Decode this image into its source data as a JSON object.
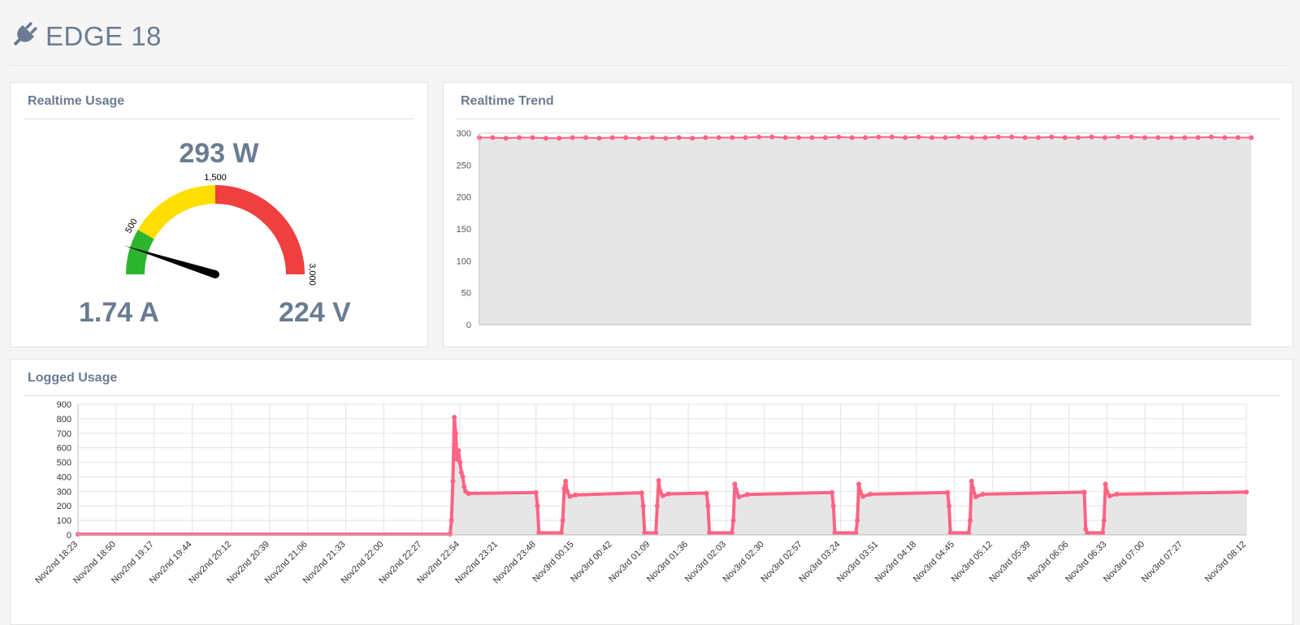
{
  "header": {
    "title": "EDGE 18",
    "icon": "plug-icon"
  },
  "usage": {
    "title": "Realtime Usage",
    "watts": "293 W",
    "amps": "1.74 A",
    "volts": "224 V",
    "gauge": {
      "min": 0,
      "max": 3000,
      "value": 293,
      "bands": [
        {
          "from": 0,
          "to": 500,
          "color": "#2db52d"
        },
        {
          "from": 500,
          "to": 1500,
          "color": "#ffde00"
        },
        {
          "from": 1500,
          "to": 3000,
          "color": "#ef3f3f"
        }
      ],
      "labels": [
        "500",
        "1,500",
        "3,000"
      ]
    }
  },
  "trend": {
    "title": "Realtime Trend"
  },
  "logged": {
    "title": "Logged Usage"
  },
  "colors": {
    "series": "#ff6384",
    "fill": "#e6e6e6",
    "grid": "#dddddd"
  },
  "chart_data": [
    {
      "type": "area",
      "yticks": [
        0,
        50,
        100,
        150,
        200,
        250,
        300
      ],
      "ylim": [
        0,
        300
      ],
      "grid": true,
      "values": [
        293,
        293,
        292,
        293,
        293,
        292,
        292,
        293,
        293,
        292,
        293,
        293,
        292,
        293,
        292,
        293,
        292,
        293,
        293,
        293,
        293,
        294,
        294,
        293,
        293,
        293,
        293,
        294,
        293,
        293,
        294,
        294,
        293,
        294,
        293,
        293,
        294,
        293,
        293,
        294,
        294,
        293,
        293,
        294,
        293,
        293,
        294,
        293,
        294,
        294,
        293,
        293,
        293,
        293,
        293,
        294,
        293,
        293,
        293
      ]
    },
    {
      "type": "area",
      "yticks": [
        0,
        100,
        200,
        300,
        400,
        500,
        600,
        700,
        800,
        900
      ],
      "ylim": [
        0,
        900
      ],
      "grid": true,
      "xticks": [
        "Nov2nd 18:23",
        "Nov2nd 18:50",
        "Nov2nd 19:17",
        "Nov2nd 19:44",
        "Nov2nd 20:12",
        "Nov2nd 20:39",
        "Nov2nd 21:06",
        "Nov2nd 21:33",
        "Nov2nd 22:00",
        "Nov2nd 22:27",
        "Nov2nd 22:54",
        "Nov2nd 23:21",
        "Nov2nd 23:48",
        "Nov3rd 00:15",
        "Nov3rd 00:42",
        "Nov3rd 01:09",
        "Nov3rd 01:36",
        "Nov3rd 02:03",
        "Nov3rd 02:30",
        "Nov3rd 02:57",
        "Nov3rd 03:24",
        "Nov3rd 03:51",
        "Nov3rd 04:18",
        "Nov3rd 04:45",
        "Nov3rd 05:12",
        "Nov3rd 05:39",
        "Nov3rd 06:06",
        "Nov3rd 06:33",
        "Nov3rd 07:00",
        "Nov3rd 07:27",
        "Nov3rd 08:12"
      ],
      "points": [
        [
          "Nov2nd 18:23",
          5
        ],
        [
          "Nov2nd 22:47",
          5
        ],
        [
          "Nov2nd 22:48",
          100
        ],
        [
          "Nov2nd 22:49",
          370
        ],
        [
          "Nov2nd 22:50",
          810
        ],
        [
          "Nov2nd 22:51",
          700
        ],
        [
          "Nov2nd 22:52",
          520
        ],
        [
          "Nov2nd 22:53",
          580
        ],
        [
          "Nov2nd 22:54",
          500
        ],
        [
          "Nov2nd 22:55",
          430
        ],
        [
          "Nov2nd 22:56",
          400
        ],
        [
          "Nov2nd 22:57",
          330
        ],
        [
          "Nov2nd 22:58",
          300
        ],
        [
          "Nov2nd 23:00",
          285
        ],
        [
          "Nov2nd 23:48",
          292
        ],
        [
          "Nov2nd 23:49",
          200
        ],
        [
          "Nov2nd 23:50",
          15
        ],
        [
          "Nov3rd 00:06",
          15
        ],
        [
          "Nov3rd 00:07",
          100
        ],
        [
          "Nov3rd 00:08",
          320
        ],
        [
          "Nov3rd 00:09",
          370
        ],
        [
          "Nov3rd 00:10",
          300
        ],
        [
          "Nov3rd 00:12",
          265
        ],
        [
          "Nov3rd 00:16",
          275
        ],
        [
          "Nov3rd 01:03",
          290
        ],
        [
          "Nov3rd 01:04",
          200
        ],
        [
          "Nov3rd 01:05",
          15
        ],
        [
          "Nov3rd 01:13",
          15
        ],
        [
          "Nov3rd 01:14",
          200
        ],
        [
          "Nov3rd 01:15",
          375
        ],
        [
          "Nov3rd 01:16",
          300
        ],
        [
          "Nov3rd 01:18",
          270
        ],
        [
          "Nov3rd 01:22",
          282
        ],
        [
          "Nov3rd 01:49",
          288
        ],
        [
          "Nov3rd 01:50",
          200
        ],
        [
          "Nov3rd 01:51",
          15
        ],
        [
          "Nov3rd 02:07",
          15
        ],
        [
          "Nov3rd 02:08",
          100
        ],
        [
          "Nov3rd 02:09",
          350
        ],
        [
          "Nov3rd 02:10",
          310
        ],
        [
          "Nov3rd 02:12",
          262
        ],
        [
          "Nov3rd 02:18",
          278
        ],
        [
          "Nov3rd 03:18",
          292
        ],
        [
          "Nov3rd 03:19",
          200
        ],
        [
          "Nov3rd 03:20",
          15
        ],
        [
          "Nov3rd 03:35",
          15
        ],
        [
          "Nov3rd 03:36",
          100
        ],
        [
          "Nov3rd 03:37",
          350
        ],
        [
          "Nov3rd 03:38",
          300
        ],
        [
          "Nov3rd 03:40",
          265
        ],
        [
          "Nov3rd 03:45",
          280
        ],
        [
          "Nov3rd 04:40",
          292
        ],
        [
          "Nov3rd 04:41",
          200
        ],
        [
          "Nov3rd 04:42",
          15
        ],
        [
          "Nov3rd 04:55",
          15
        ],
        [
          "Nov3rd 04:56",
          100
        ],
        [
          "Nov3rd 04:57",
          370
        ],
        [
          "Nov3rd 04:58",
          320
        ],
        [
          "Nov3rd 05:00",
          262
        ],
        [
          "Nov3rd 05:05",
          280
        ],
        [
          "Nov3rd 06:17",
          295
        ],
        [
          "Nov3rd 06:18",
          40
        ],
        [
          "Nov3rd 06:19",
          15
        ],
        [
          "Nov3rd 06:30",
          15
        ],
        [
          "Nov3rd 06:31",
          100
        ],
        [
          "Nov3rd 06:32",
          350
        ],
        [
          "Nov3rd 06:33",
          300
        ],
        [
          "Nov3rd 06:35",
          268
        ],
        [
          "Nov3rd 06:40",
          280
        ],
        [
          "Nov3rd 08:12",
          295
        ]
      ]
    }
  ]
}
